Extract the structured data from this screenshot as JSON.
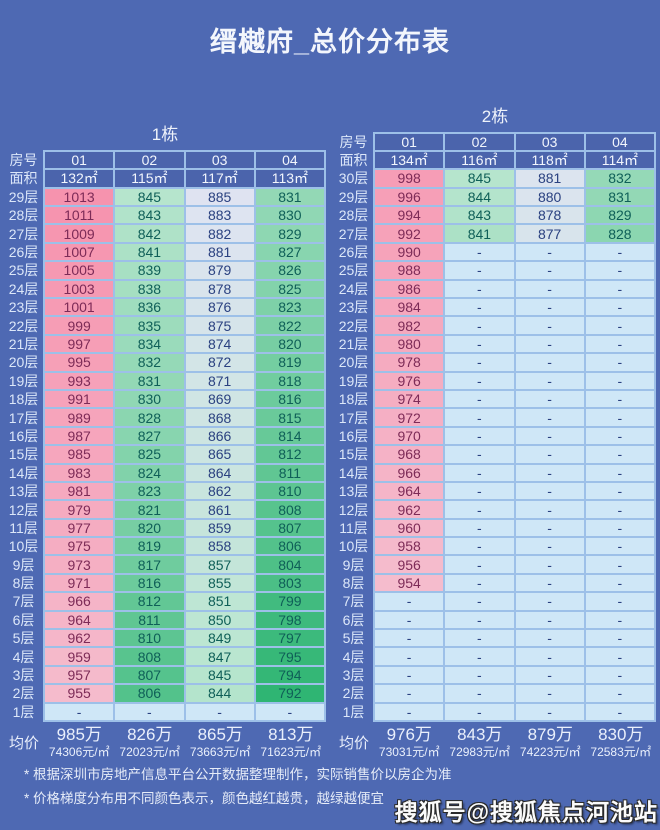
{
  "page": {
    "title": "缙樾府_总价分布表",
    "notes": [
      "* 根据深圳市房地产信息平台公开数据整理制作，实际销售价以房企为准",
      "* 价格梯度分布用不同颜色表示，颜色越红越贵，越绿越便宜"
    ],
    "watermark": "搜狐号@搜狐焦点河池站"
  },
  "colors": {
    "background": "#4e69b3",
    "header_cell": "#4b64ac",
    "border": "#9dc0e8",
    "empty_cell": "#cfe7f7",
    "text_pink_cell": "#7d2b57",
    "text_navy_cell": "#2a4180",
    "text_teal_cell": "#0f5f58",
    "heat_stops": [
      [
        792,
        "#2fb573"
      ],
      [
        846,
        "#b9e6cf"
      ],
      [
        884,
        "#dfe4f2"
      ],
      [
        954,
        "#f5bccd"
      ],
      [
        1013,
        "#f693ae"
      ]
    ]
  },
  "chart_data": [
    {
      "type": "table",
      "title": "1栋",
      "corner_labels": [
        "房号",
        "面积"
      ],
      "columns": [
        "01",
        "02",
        "03",
        "04"
      ],
      "areas": [
        "132㎡",
        "115㎡",
        "117㎡",
        "113㎡"
      ],
      "row_labels": [
        "29层",
        "28层",
        "27层",
        "26层",
        "25层",
        "24层",
        "23层",
        "22层",
        "21层",
        "20层",
        "19层",
        "18层",
        "17层",
        "16层",
        "15层",
        "14层",
        "13层",
        "12层",
        "11层",
        "10层",
        "9层",
        "8层",
        "7层",
        "6层",
        "5层",
        "4层",
        "3层",
        "2层",
        "1层"
      ],
      "values": [
        [
          1013,
          845,
          885,
          831
        ],
        [
          1011,
          843,
          883,
          830
        ],
        [
          1009,
          842,
          882,
          829
        ],
        [
          1007,
          841,
          881,
          827
        ],
        [
          1005,
          839,
          879,
          826
        ],
        [
          1003,
          838,
          878,
          825
        ],
        [
          1001,
          836,
          876,
          823
        ],
        [
          999,
          835,
          875,
          822
        ],
        [
          997,
          834,
          874,
          820
        ],
        [
          995,
          832,
          872,
          819
        ],
        [
          993,
          831,
          871,
          818
        ],
        [
          991,
          830,
          869,
          816
        ],
        [
          989,
          828,
          868,
          815
        ],
        [
          987,
          827,
          866,
          814
        ],
        [
          985,
          825,
          865,
          812
        ],
        [
          983,
          824,
          864,
          811
        ],
        [
          981,
          823,
          862,
          810
        ],
        [
          979,
          821,
          861,
          808
        ],
        [
          977,
          820,
          859,
          807
        ],
        [
          975,
          819,
          858,
          806
        ],
        [
          973,
          817,
          857,
          804
        ],
        [
          971,
          816,
          855,
          803
        ],
        [
          966,
          812,
          851,
          799
        ],
        [
          964,
          811,
          850,
          798
        ],
        [
          962,
          810,
          849,
          797
        ],
        [
          959,
          808,
          847,
          795
        ],
        [
          957,
          807,
          845,
          794
        ],
        [
          955,
          806,
          844,
          792
        ],
        [
          "-",
          "-",
          "-",
          "-"
        ]
      ],
      "avg_label": "均价",
      "avg_total": [
        "985万",
        "826万",
        "865万",
        "813万"
      ],
      "avg_unit": [
        "74306元/㎡",
        "72023元/㎡",
        "73663元/㎡",
        "71623元/㎡"
      ]
    },
    {
      "type": "table",
      "title": "2栋",
      "corner_labels": [
        "房号",
        "面积"
      ],
      "columns": [
        "01",
        "02",
        "03",
        "04"
      ],
      "areas": [
        "134㎡",
        "116㎡",
        "118㎡",
        "114㎡"
      ],
      "row_labels": [
        "30层",
        "29层",
        "28层",
        "27层",
        "26层",
        "25层",
        "24层",
        "23层",
        "22层",
        "21层",
        "20层",
        "19层",
        "18层",
        "17层",
        "16层",
        "15层",
        "14层",
        "13层",
        "12层",
        "11层",
        "10层",
        "9层",
        "8层",
        "7层",
        "6层",
        "5层",
        "4层",
        "3层",
        "2层",
        "1层"
      ],
      "values": [
        [
          998,
          845,
          881,
          832
        ],
        [
          996,
          844,
          880,
          831
        ],
        [
          994,
          843,
          878,
          829
        ],
        [
          992,
          841,
          877,
          828
        ],
        [
          990,
          "-",
          "-",
          "-"
        ],
        [
          988,
          "-",
          "-",
          "-"
        ],
        [
          986,
          "-",
          "-",
          "-"
        ],
        [
          984,
          "-",
          "-",
          "-"
        ],
        [
          982,
          "-",
          "-",
          "-"
        ],
        [
          980,
          "-",
          "-",
          "-"
        ],
        [
          978,
          "-",
          "-",
          "-"
        ],
        [
          976,
          "-",
          "-",
          "-"
        ],
        [
          974,
          "-",
          "-",
          "-"
        ],
        [
          972,
          "-",
          "-",
          "-"
        ],
        [
          970,
          "-",
          "-",
          "-"
        ],
        [
          968,
          "-",
          "-",
          "-"
        ],
        [
          966,
          "-",
          "-",
          "-"
        ],
        [
          964,
          "-",
          "-",
          "-"
        ],
        [
          962,
          "-",
          "-",
          "-"
        ],
        [
          960,
          "-",
          "-",
          "-"
        ],
        [
          958,
          "-",
          "-",
          "-"
        ],
        [
          956,
          "-",
          "-",
          "-"
        ],
        [
          954,
          "-",
          "-",
          "-"
        ],
        [
          "-",
          "-",
          "-",
          "-"
        ],
        [
          "-",
          "-",
          "-",
          "-"
        ],
        [
          "-",
          "-",
          "-",
          "-"
        ],
        [
          "-",
          "-",
          "-",
          "-"
        ],
        [
          "-",
          "-",
          "-",
          "-"
        ],
        [
          "-",
          "-",
          "-",
          "-"
        ],
        [
          "-",
          "-",
          "-",
          "-"
        ]
      ],
      "avg_label": "均价",
      "avg_total": [
        "976万",
        "843万",
        "879万",
        "830万"
      ],
      "avg_unit": [
        "73031元/㎡",
        "72983元/㎡",
        "74223元/㎡",
        "72583元/㎡"
      ]
    }
  ]
}
